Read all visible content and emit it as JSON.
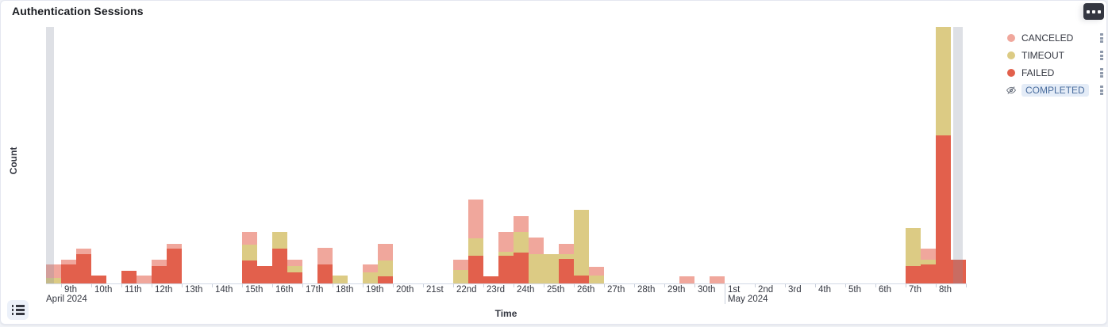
{
  "header": {
    "title": "Authentication Sessions",
    "panel_options_icon": "three-squares-horizontal",
    "legend_toggle_icon": "list-bullets"
  },
  "colors": {
    "canceled": "#f0a79c",
    "timeout": "#dccb84",
    "failed": "#e2604c",
    "hidden_text": "#4a6d9e",
    "hidden_pill_bg": "#e4ecf7",
    "partial_bucket_overlay": "rgba(134,140,160,0.27)"
  },
  "legend": {
    "items": [
      {
        "label": "CANCELED",
        "color": "#f0a79c",
        "hidden": false,
        "icon": "dot",
        "actions_icon": "legend-actions-icon"
      },
      {
        "label": "TIMEOUT",
        "color": "#dccb84",
        "hidden": false,
        "icon": "dot",
        "actions_icon": "legend-actions-icon"
      },
      {
        "label": "FAILED",
        "color": "#e2604c",
        "hidden": false,
        "icon": "dot",
        "actions_icon": "legend-actions-icon"
      },
      {
        "label": "COMPLETED",
        "color": null,
        "hidden": true,
        "icon": "eye-slash-icon",
        "actions_icon": "legend-actions-icon"
      }
    ]
  },
  "chart_data": {
    "type": "bar",
    "stacked": true,
    "title": "Authentication Sessions",
    "xlabel": "Time",
    "ylabel": "Count",
    "x_bucket_size": "12 hours",
    "x_range": [
      "April 8 2024 12:00",
      "May 9 2024 00:00"
    ],
    "grid": false,
    "legend_position": "right",
    "y_axis_note": "no numeric tick labels shown; values are relative units where plot height = 324",
    "ylim": [
      0,
      324
    ],
    "series_order_bottom_to_top": [
      "FAILED",
      "TIMEOUT",
      "CANCELED"
    ],
    "hidden_series": [
      "COMPLETED"
    ],
    "points": [
      {
        "bucket": "Apr 8 PM",
        "slot": 0,
        "failed": 0,
        "timeout": 7,
        "canceled": 17
      },
      {
        "bucket": "Apr 9 AM",
        "slot": 1,
        "failed": 24,
        "timeout": 0,
        "canceled": 6
      },
      {
        "bucket": "Apr 9 PM",
        "slot": 2,
        "failed": 37,
        "timeout": 0,
        "canceled": 7
      },
      {
        "bucket": "Apr 10 AM",
        "slot": 3,
        "failed": 10,
        "timeout": 0,
        "canceled": 0
      },
      {
        "bucket": "Apr 11 AM",
        "slot": 5,
        "failed": 16,
        "timeout": 0,
        "canceled": 0
      },
      {
        "bucket": "Apr 11 PM",
        "slot": 6,
        "failed": 0,
        "timeout": 0,
        "canceled": 10
      },
      {
        "bucket": "Apr 12 AM",
        "slot": 7,
        "failed": 22,
        "timeout": 0,
        "canceled": 8
      },
      {
        "bucket": "Apr 12 PM",
        "slot": 8,
        "failed": 44,
        "timeout": 0,
        "canceled": 6
      },
      {
        "bucket": "Apr 15 AM",
        "slot": 13,
        "failed": 29,
        "timeout": 20,
        "canceled": 16
      },
      {
        "bucket": "Apr 15 PM",
        "slot": 14,
        "failed": 22,
        "timeout": 0,
        "canceled": 0
      },
      {
        "bucket": "Apr 16 AM",
        "slot": 15,
        "failed": 44,
        "timeout": 21,
        "canceled": 0
      },
      {
        "bucket": "Apr 16 PM",
        "slot": 16,
        "failed": 14,
        "timeout": 8,
        "canceled": 8
      },
      {
        "bucket": "Apr 17 PM",
        "slot": 18,
        "failed": 24,
        "timeout": 0,
        "canceled": 21
      },
      {
        "bucket": "Apr 18 AM",
        "slot": 19,
        "failed": 0,
        "timeout": 10,
        "canceled": 0
      },
      {
        "bucket": "Apr 19 AM",
        "slot": 21,
        "failed": 0,
        "timeout": 14,
        "canceled": 10
      },
      {
        "bucket": "Apr 19 PM",
        "slot": 22,
        "failed": 9,
        "timeout": 20,
        "canceled": 21
      },
      {
        "bucket": "Apr 22 AM",
        "slot": 27,
        "failed": 0,
        "timeout": 17,
        "canceled": 13
      },
      {
        "bucket": "Apr 22 PM",
        "slot": 28,
        "failed": 35,
        "timeout": 22,
        "canceled": 49
      },
      {
        "bucket": "Apr 23 AM",
        "slot": 29,
        "failed": 9,
        "timeout": 0,
        "canceled": 0
      },
      {
        "bucket": "Apr 23 PM",
        "slot": 30,
        "failed": 35,
        "timeout": 5,
        "canceled": 25
      },
      {
        "bucket": "Apr 24 AM",
        "slot": 31,
        "failed": 39,
        "timeout": 26,
        "canceled": 20
      },
      {
        "bucket": "Apr 24 PM",
        "slot": 32,
        "failed": 0,
        "timeout": 37,
        "canceled": 21
      },
      {
        "bucket": "Apr 25 AM",
        "slot": 33,
        "failed": 0,
        "timeout": 37,
        "canceled": 0
      },
      {
        "bucket": "Apr 25 PM",
        "slot": 34,
        "failed": 31,
        "timeout": 6,
        "canceled": 13
      },
      {
        "bucket": "Apr 26 AM",
        "slot": 35,
        "failed": 10,
        "timeout": 83,
        "canceled": 0
      },
      {
        "bucket": "Apr 26 PM",
        "slot": 36,
        "failed": 0,
        "timeout": 10,
        "canceled": 11
      },
      {
        "bucket": "Apr 29 PM",
        "slot": 42,
        "failed": 0,
        "timeout": 0,
        "canceled": 9
      },
      {
        "bucket": "Apr 30 PM",
        "slot": 44,
        "failed": 0,
        "timeout": 0,
        "canceled": 9
      },
      {
        "bucket": "May 7 AM",
        "slot": 57,
        "failed": 22,
        "timeout": 48,
        "canceled": 0
      },
      {
        "bucket": "May 7 PM",
        "slot": 58,
        "failed": 24,
        "timeout": 6,
        "canceled": 14
      },
      {
        "bucket": "May 8 AM",
        "slot": 59,
        "failed": 187,
        "timeout": 137,
        "canceled": 0
      },
      {
        "bucket": "May 8 PM",
        "slot": 60,
        "failed": 30,
        "timeout": 0,
        "canceled": 0
      }
    ],
    "partial_buckets": [
      {
        "edge": "left",
        "x_rel": 0,
        "width": 9.5
      },
      {
        "edge": "right",
        "x_rel": 1143,
        "width": 12
      }
    ],
    "x_axis": {
      "day_labels": [
        "9th",
        "10th",
        "11th",
        "12th",
        "13th",
        "14th",
        "15th",
        "16th",
        "17th",
        "18th",
        "19th",
        "20th",
        "21st",
        "22nd",
        "23rd",
        "24th",
        "25th",
        "26th",
        "27th",
        "28th",
        "29th",
        "30th",
        "1st",
        "2nd",
        "3rd",
        "4th",
        "5th",
        "6th",
        "7th",
        "8th"
      ],
      "month_labels": [
        {
          "text": "April 2024",
          "at_plot_left": true,
          "day_index": null
        },
        {
          "text": "May 2024",
          "at_plot_left": false,
          "day_index": 22
        }
      ]
    }
  }
}
